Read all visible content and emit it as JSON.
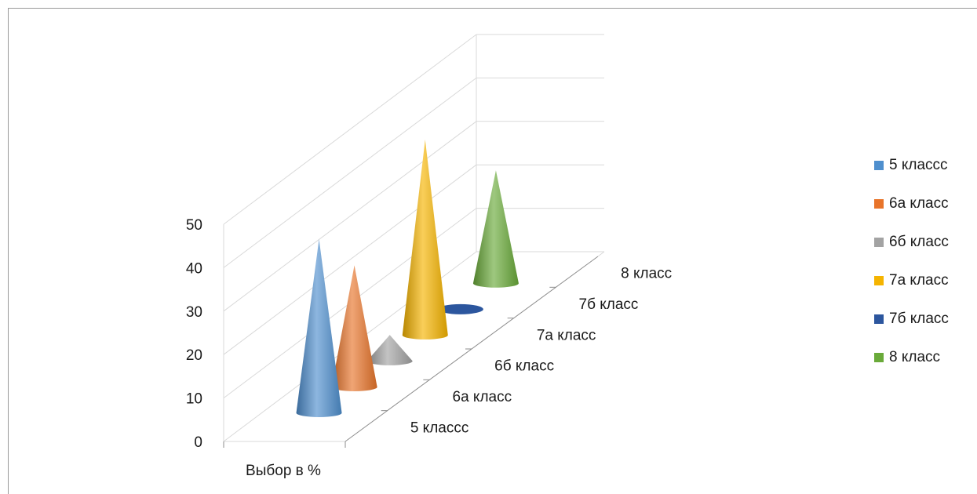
{
  "chart_data": {
    "type": "bar",
    "subtype": "3d-cone",
    "x_category": "Выбор в %",
    "yticks": [
      "0",
      "10",
      "20",
      "30",
      "40",
      "50"
    ],
    "ylim": [
      0,
      50
    ],
    "grid": true,
    "legend_position": "right",
    "series": [
      {
        "name": "5 классс",
        "value": 40,
        "color": "#4f8fce"
      },
      {
        "name": "6а класс",
        "value": 28,
        "color": "#e8742a"
      },
      {
        "name": "6б класс",
        "value": 6,
        "color": "#a3a3a3"
      },
      {
        "name": "7а класс",
        "value": 45,
        "color": "#f5b400"
      },
      {
        "name": "7б класс",
        "value": 0,
        "color": "#2c569e"
      },
      {
        "name": "8 класс",
        "value": 26,
        "color": "#6aaa3a"
      }
    ]
  }
}
